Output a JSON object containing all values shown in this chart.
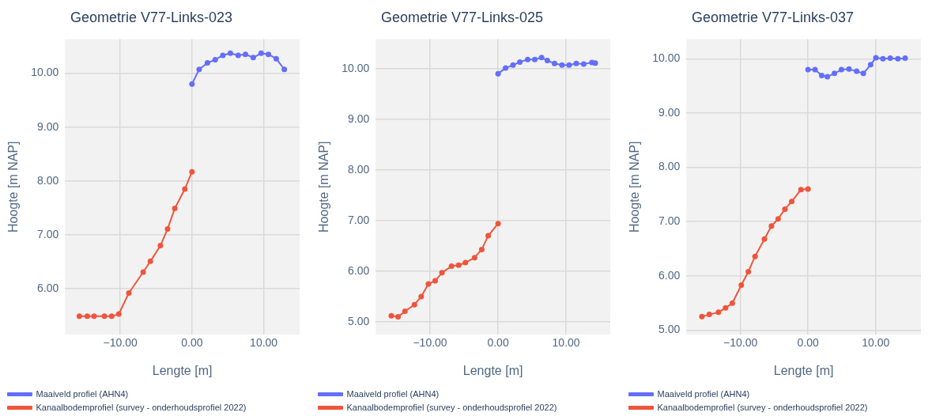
{
  "chart_data": [
    {
      "type": "line",
      "title": "Geometrie V77-Links-023",
      "xlabel": "Lengte [m]",
      "ylabel": "Hoogte [m NAP]",
      "xlim": [
        -17.7,
        15
      ],
      "ylim": [
        5.15,
        10.63
      ],
      "xticks": [
        {
          "value": -10,
          "label": "−10.00"
        },
        {
          "value": 0,
          "label": "0.00"
        },
        {
          "value": 10,
          "label": "10.00"
        }
      ],
      "yticks": [
        {
          "value": 6,
          "label": "6.00"
        },
        {
          "value": 7,
          "label": "7.00"
        },
        {
          "value": 8,
          "label": "8.00"
        },
        {
          "value": 9,
          "label": "9.00"
        },
        {
          "value": 10,
          "label": "10.00"
        }
      ],
      "grid": true,
      "legend": "bottom",
      "marker": "circle",
      "line_style": "solid",
      "series": [
        {
          "name": "Maaiveld profiel (AHN4)",
          "color": "#636efa",
          "x": [
            0,
            1.0,
            2.15,
            3.24,
            4.3,
            5.35,
            6.44,
            7.45,
            8.54,
            9.64,
            10.65,
            11.74,
            12.87
          ],
          "values": [
            9.8,
            10.07,
            10.19,
            10.25,
            10.33,
            10.37,
            10.33,
            10.35,
            10.29,
            10.37,
            10.35,
            10.27,
            10.07
          ]
        },
        {
          "name": "Kanaalbodemprofiel (survey - onderhoudsprofiel 2022)",
          "color": "#ef553b",
          "x": [
            -15.7,
            -14.6,
            -13.65,
            -12.2,
            -11.2,
            -10.2,
            -8.8,
            -6.8,
            -5.8,
            -4.4,
            -3.4,
            -2.4,
            -1.0,
            0
          ],
          "values": [
            5.49,
            5.49,
            5.49,
            5.49,
            5.49,
            5.53,
            5.92,
            6.31,
            6.51,
            6.8,
            7.11,
            7.49,
            7.85,
            8.17
          ]
        }
      ]
    },
    {
      "type": "line",
      "title": "Geometrie V77-Links-025",
      "xlabel": "Lengte [m]",
      "ylabel": "Hoogte [m NAP]",
      "xlim": [
        -18,
        16.5
      ],
      "ylim": [
        4.75,
        10.58
      ],
      "xticks": [
        {
          "value": -10,
          "label": "−10.00"
        },
        {
          "value": 0,
          "label": "0.00"
        },
        {
          "value": 10,
          "label": "10.00"
        }
      ],
      "yticks": [
        {
          "value": 5,
          "label": "5.00"
        },
        {
          "value": 6,
          "label": "6.00"
        },
        {
          "value": 7,
          "label": "7.00"
        },
        {
          "value": 8,
          "label": "8.00"
        },
        {
          "value": 9,
          "label": "9.00"
        },
        {
          "value": 10,
          "label": "10.00"
        }
      ],
      "grid": true,
      "legend": "bottom",
      "marker": "circle",
      "line_style": "solid",
      "series": [
        {
          "name": "Maaiveld profiel (AHN4)",
          "color": "#636efa",
          "x": [
            0,
            1.1,
            2.2,
            3.2,
            4.35,
            5.4,
            6.4,
            7.25,
            8.3,
            9.4,
            10.45,
            11.5,
            12.6,
            13.8,
            14.3
          ],
          "values": [
            9.9,
            10.01,
            10.07,
            10.13,
            10.18,
            10.18,
            10.22,
            10.16,
            10.1,
            10.07,
            10.07,
            10.1,
            10.09,
            10.12,
            10.11
          ]
        },
        {
          "name": "Kanaalbodemprofiel (survey - onderhoudsprofiel 2022)",
          "color": "#ef553b",
          "x": [
            -15.7,
            -14.7,
            -13.7,
            -12.3,
            -11.3,
            -10.25,
            -9.25,
            -8.25,
            -6.85,
            -5.8,
            -4.8,
            -3.45,
            -2.4,
            -1.45,
            0
          ],
          "values": [
            5.12,
            5.1,
            5.21,
            5.34,
            5.5,
            5.75,
            5.81,
            5.97,
            6.1,
            6.12,
            6.17,
            6.27,
            6.43,
            6.7,
            6.94
          ]
        }
      ]
    },
    {
      "type": "line",
      "title": "Geometrie V77-Links-037",
      "xlabel": "Lengte [m]",
      "ylabel": "Hoogte [m NAP]",
      "xlim": [
        -18,
        16.7
      ],
      "ylim": [
        4.92,
        10.36
      ],
      "xticks": [
        {
          "value": -10,
          "label": "−10.00"
        },
        {
          "value": 0,
          "label": "0.00"
        },
        {
          "value": 10,
          "label": "10.00"
        }
      ],
      "yticks": [
        {
          "value": 5,
          "label": "5.00"
        },
        {
          "value": 6,
          "label": "6.00"
        },
        {
          "value": 7,
          "label": "7.00"
        },
        {
          "value": 8,
          "label": "8.00"
        },
        {
          "value": 9,
          "label": "9.00"
        },
        {
          "value": 10,
          "label": "10.00"
        }
      ],
      "grid": true,
      "legend": "bottom",
      "marker": "circle",
      "line_style": "solid",
      "series": [
        {
          "name": "Maaiveld profiel (AHN4)",
          "color": "#636efa",
          "x": [
            0,
            1.04,
            2.03,
            2.86,
            3.9,
            4.94,
            6.06,
            7.19,
            8.18,
            9.26,
            10.04,
            11.08,
            12.16,
            13.29,
            14.37
          ],
          "values": [
            9.8,
            9.8,
            9.69,
            9.67,
            9.73,
            9.8,
            9.81,
            9.77,
            9.73,
            9.89,
            10.02,
            10.0,
            10.01,
            10.0,
            10.01
          ]
        },
        {
          "name": "Kanaalbodemprofiel (survey - onderhoudsprofiel 2022)",
          "color": "#ef553b",
          "x": [
            -15.7,
            -14.6,
            -13.25,
            -12.2,
            -11.2,
            -9.87,
            -8.83,
            -7.84,
            -6.45,
            -5.41,
            -4.42,
            -3.42,
            -2.42,
            -1.04,
            0
          ],
          "values": [
            5.25,
            5.29,
            5.33,
            5.41,
            5.5,
            5.83,
            6.08,
            6.36,
            6.68,
            6.92,
            7.05,
            7.23,
            7.37,
            7.59,
            7.6
          ]
        }
      ]
    }
  ]
}
